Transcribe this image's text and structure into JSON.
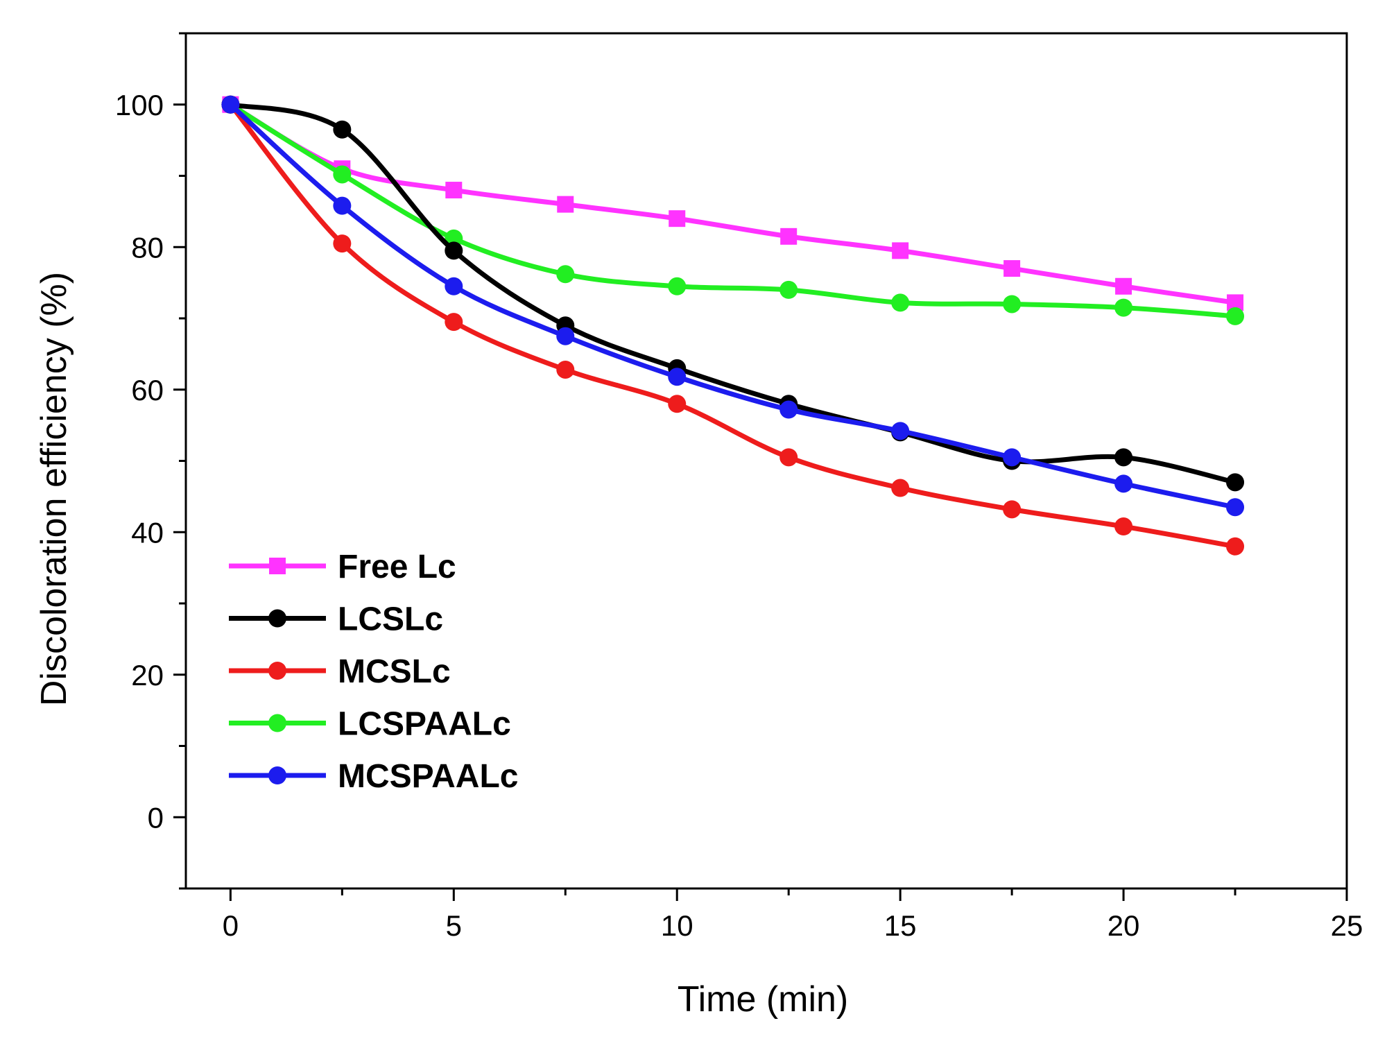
{
  "chart_data": {
    "type": "line",
    "xlabel": "Time (min)",
    "ylabel": "Discoloration efficiency (%)",
    "xlim": [
      -1,
      25
    ],
    "ylim": [
      -10,
      110
    ],
    "xticks": [
      0,
      5,
      10,
      15,
      20,
      25
    ],
    "yticks": [
      0,
      20,
      40,
      60,
      80,
      100
    ],
    "x_tick_labels": [
      "0",
      "5",
      "10",
      "15",
      "20",
      "25"
    ],
    "y_tick_labels": [
      "0",
      "20",
      "40",
      "60",
      "80",
      "100"
    ],
    "grid": false,
    "smooth": true,
    "legend_position": "bottom-left",
    "x": [
      0,
      2.5,
      5,
      7.5,
      10,
      12.5,
      15,
      17.5,
      20,
      22.5
    ],
    "series": [
      {
        "name": "Free Lc",
        "color": "#ff33ff",
        "marker": "square",
        "values": [
          100,
          91,
          88,
          86,
          84,
          81.5,
          79.5,
          77,
          74.5,
          72.2
        ]
      },
      {
        "name": "LCSLc",
        "color": "#000000",
        "marker": "circle",
        "values": [
          100,
          96.5,
          79.5,
          69,
          63,
          58,
          54,
          50,
          50.5,
          47
        ]
      },
      {
        "name": "MCSLc",
        "color": "#ee1c1c",
        "marker": "circle",
        "values": [
          100,
          80.5,
          69.5,
          62.8,
          58,
          50.5,
          46.2,
          43.2,
          40.8,
          38
        ]
      },
      {
        "name": "LCSPAALc",
        "color": "#22ee22",
        "marker": "circle",
        "values": [
          100,
          90.2,
          81.2,
          76.2,
          74.5,
          74,
          72.2,
          72,
          71.5,
          70.3
        ]
      },
      {
        "name": "MCSPAALc",
        "color": "#1c1cee",
        "marker": "circle",
        "values": [
          100,
          85.8,
          74.5,
          67.5,
          61.8,
          57.2,
          54.2,
          50.5,
          46.8,
          43.5
        ]
      }
    ]
  }
}
